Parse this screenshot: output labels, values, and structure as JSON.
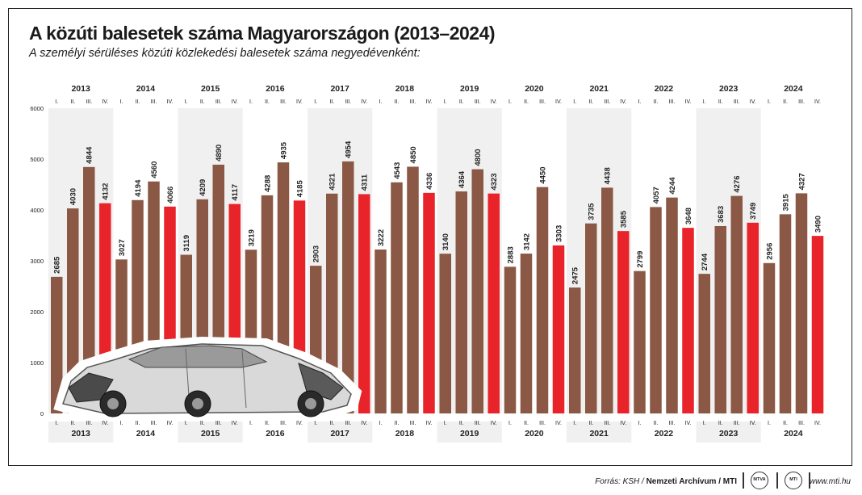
{
  "title": "A közúti balesetek száma Magyarországon (2013–2024)",
  "subtitle": "A személyi sérüléses közúti közlekedési balesetek száma negyedévenként:",
  "footer": {
    "source_prefix": "Forrás: KSH / ",
    "source_bold": "Nemzeti Archívum / MTI",
    "logo_left": "MTVA",
    "logo_right": "MTI",
    "website": "www.mti.hu"
  },
  "colors": {
    "bar_regular": "#8a5844",
    "bar_q4": "#e8232a",
    "band_shade": "#f0f0f0",
    "axis_text": "#222222"
  },
  "chart_data": {
    "type": "bar",
    "title": "A közúti balesetek száma Magyarországon (2013–2024)",
    "years": [
      "2013",
      "2014",
      "2015",
      "2016",
      "2017",
      "2018",
      "2019",
      "2020",
      "2021",
      "2022",
      "2023",
      "2024"
    ],
    "quarters": [
      "I.",
      "II.",
      "III.",
      "IV."
    ],
    "ylim": [
      0,
      6000
    ],
    "yticks": [
      0,
      1000,
      2000,
      3000,
      4000,
      5000,
      6000
    ],
    "highlight_quarter": "IV.",
    "values": [
      [
        2685,
        4030,
        4844,
        4132
      ],
      [
        3027,
        4194,
        4560,
        4066
      ],
      [
        3119,
        4209,
        4890,
        4117
      ],
      [
        3219,
        4288,
        4935,
        4185
      ],
      [
        2903,
        4321,
        4954,
        4311
      ],
      [
        3222,
        4543,
        4850,
        4336
      ],
      [
        3140,
        4364,
        4800,
        4323
      ],
      [
        2883,
        3142,
        4450,
        3303
      ],
      [
        2475,
        3735,
        4438,
        3585
      ],
      [
        2799,
        4057,
        4244,
        3648
      ],
      [
        2744,
        3683,
        4276,
        3749
      ],
      [
        2956,
        3915,
        4327,
        3490
      ]
    ],
    "shaded_years": [
      "2013",
      "2015",
      "2017",
      "2019",
      "2021",
      "2023"
    ],
    "grid": false
  }
}
